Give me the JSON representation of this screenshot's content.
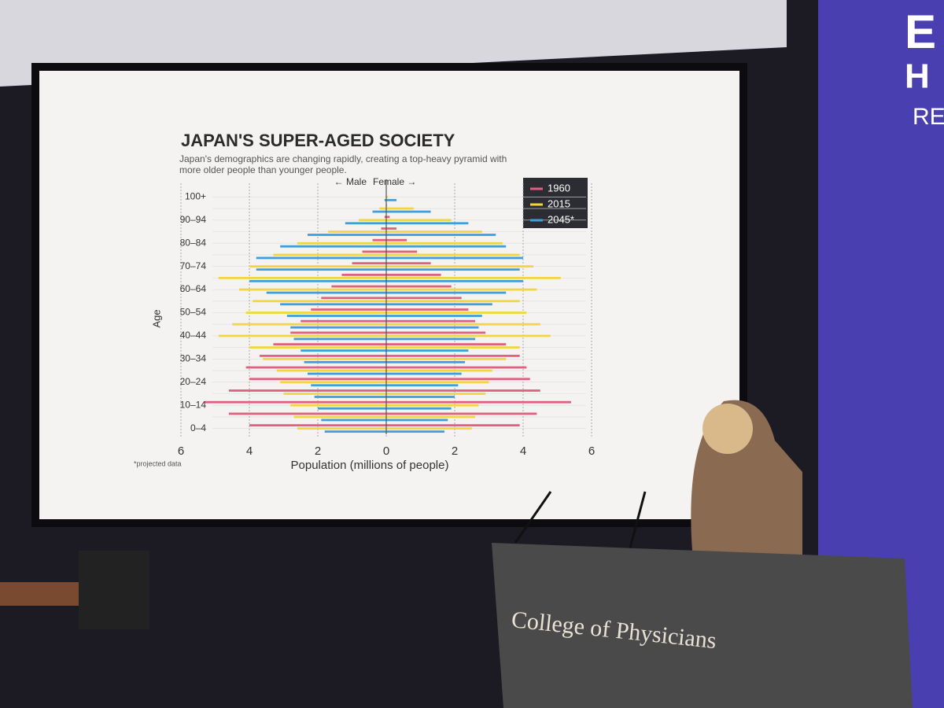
{
  "chart_data": {
    "type": "pyramid",
    "title": "JAPAN'S SUPER-AGED SOCIETY",
    "subtitle": "Japan's demographics are changing rapidly, creating a top-heavy pyramid with more older people than younger people.",
    "male_label": "← Male",
    "female_label": "Female →",
    "y_label": "Age",
    "x_label": "Population  (millions of people)",
    "note": "*projected data",
    "categories": [
      "0–4",
      null,
      "10–14",
      null,
      "20–24",
      null,
      "30–34",
      null,
      "40–44",
      null,
      "50–54",
      null,
      "60–64",
      null,
      "70–74",
      null,
      "80–84",
      null,
      "90–94",
      null,
      "100+"
    ],
    "series": [
      {
        "name": "1960",
        "color": "#e0607e",
        "male": [
          4.0,
          4.6,
          5.3,
          4.6,
          4.0,
          4.1,
          3.7,
          3.3,
          2.8,
          2.5,
          2.2,
          1.9,
          1.6,
          1.3,
          1.0,
          0.7,
          0.4,
          0.15,
          0.05,
          0.01,
          0
        ],
        "female": [
          3.9,
          4.4,
          5.4,
          4.5,
          4.2,
          4.1,
          3.9,
          3.5,
          2.9,
          2.6,
          2.4,
          2.2,
          1.9,
          1.6,
          1.3,
          0.9,
          0.6,
          0.3,
          0.1,
          0.02,
          0
        ]
      },
      {
        "name": "2015",
        "color": "#f2d640",
        "male": [
          2.6,
          2.7,
          2.8,
          3.0,
          3.1,
          3.2,
          3.6,
          4.0,
          4.9,
          4.5,
          4.1,
          3.9,
          4.3,
          4.9,
          4.0,
          3.3,
          2.6,
          1.7,
          0.8,
          0.2,
          0.01
        ],
        "female": [
          2.5,
          2.6,
          2.7,
          2.9,
          3.0,
          3.1,
          3.5,
          3.9,
          4.8,
          4.5,
          4.1,
          3.9,
          4.4,
          5.1,
          4.3,
          3.9,
          3.4,
          2.8,
          1.9,
          0.8,
          0.05
        ]
      },
      {
        "name": "2045*",
        "color": "#3f9fdc",
        "male": [
          1.8,
          1.9,
          2.0,
          2.1,
          2.2,
          2.3,
          2.4,
          2.5,
          2.7,
          2.8,
          2.9,
          3.1,
          3.5,
          4.0,
          3.8,
          3.8,
          3.1,
          2.3,
          1.2,
          0.4,
          0.05
        ],
        "female": [
          1.7,
          1.8,
          1.9,
          2.0,
          2.1,
          2.2,
          2.3,
          2.4,
          2.6,
          2.7,
          2.8,
          3.1,
          3.5,
          4.0,
          3.9,
          4.0,
          3.5,
          3.2,
          2.4,
          1.3,
          0.3
        ]
      }
    ],
    "xlim": [
      -6,
      6
    ],
    "xticks": [
      {
        "value": -6,
        "label": "6"
      },
      {
        "value": -4,
        "label": "4"
      },
      {
        "value": -2,
        "label": "2"
      },
      0,
      2,
      4,
      6
    ],
    "grid": true,
    "legend": "top-right"
  },
  "scene": {
    "lectern_text": "College of Physicians",
    "banner": [
      "E",
      "H",
      "RE"
    ]
  }
}
